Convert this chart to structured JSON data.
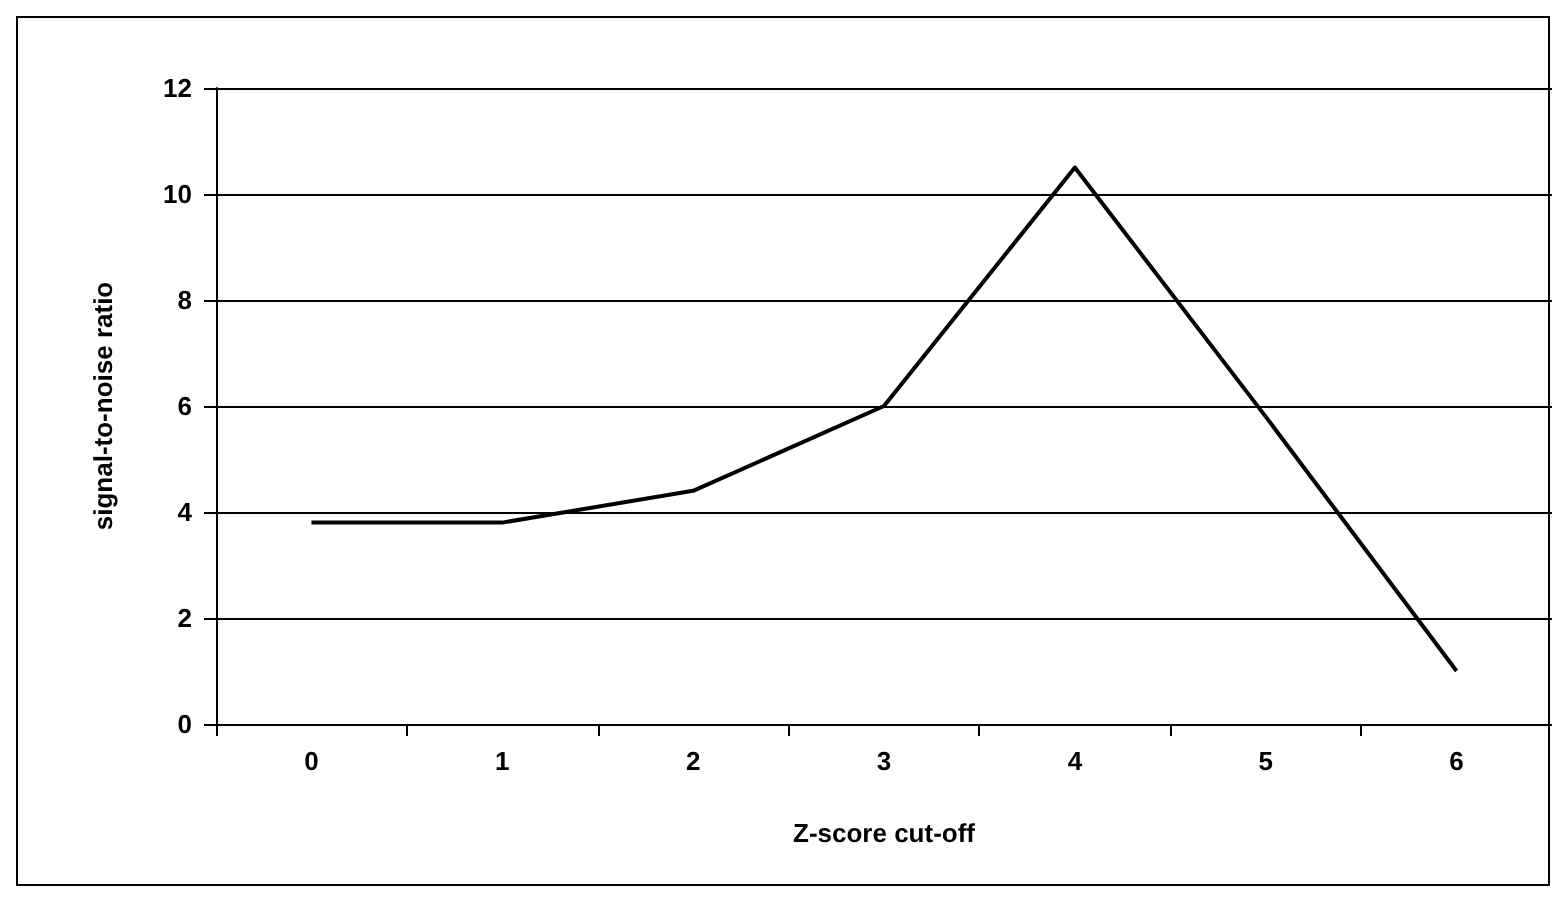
{
  "chart_data": {
    "type": "line",
    "xlabel": "Z-score cut-off",
    "ylabel": "signal-to-noise ratio",
    "categories": [
      "0",
      "1",
      "2",
      "3",
      "4",
      "5",
      "6"
    ],
    "series": [
      {
        "color": "#000000",
        "values": [
          3.8,
          3.8,
          4.4,
          6.0,
          10.5,
          5.8,
          1.0
        ]
      }
    ],
    "ylim": [
      0,
      12
    ],
    "yticks": [
      0,
      2,
      4,
      6,
      8,
      10,
      12
    ],
    "grid": "y",
    "marker": "none",
    "line_style": "solid"
  }
}
